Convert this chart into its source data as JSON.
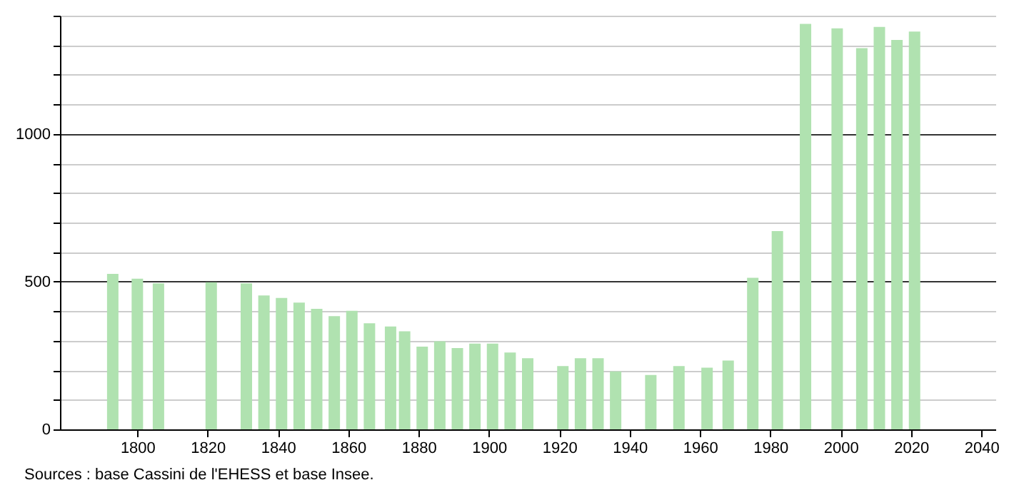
{
  "chart_data": {
    "type": "bar",
    "annotations": [
      "Sources : base Cassini de l'EHESS et base Insee."
    ],
    "x": [
      1793,
      1800,
      1806,
      1821,
      1831,
      1836,
      1841,
      1846,
      1851,
      1856,
      1861,
      1866,
      1872,
      1876,
      1881,
      1886,
      1891,
      1896,
      1901,
      1906,
      1911,
      1921,
      1926,
      1931,
      1936,
      1946,
      1954,
      1962,
      1968,
      1975,
      1982,
      1990,
      1999,
      2006,
      2011,
      2016,
      2021
    ],
    "values": [
      526,
      510,
      494,
      498,
      494,
      453,
      445,
      429,
      408,
      383,
      401,
      359,
      348,
      332,
      280,
      298,
      275,
      290,
      290,
      260,
      241,
      214,
      241,
      241,
      196,
      184,
      214,
      209,
      233,
      513,
      671,
      1372,
      1357,
      1290,
      1362,
      1318,
      1346
    ],
    "color": "#b0e2b0",
    "xlim": [
      1778,
      2044
    ],
    "xticks": [
      1800,
      1820,
      1840,
      1860,
      1880,
      1900,
      1920,
      1940,
      1960,
      1980,
      2000,
      2020,
      2040
    ],
    "ylim": [
      0,
      1400
    ],
    "yticks": [
      0,
      {
        "value": 100,
        "label": null
      },
      {
        "value": 200,
        "label": null
      },
      {
        "value": 300,
        "label": null
      },
      {
        "value": 400,
        "label": null
      },
      500,
      {
        "value": 600,
        "label": null
      },
      {
        "value": 700,
        "label": null
      },
      {
        "value": 800,
        "label": null
      },
      {
        "value": 900,
        "label": null
      },
      1000,
      {
        "value": 1100,
        "label": null
      },
      {
        "value": 1200,
        "label": null
      },
      {
        "value": 1300,
        "label": null
      },
      {
        "value": 1400,
        "label": null
      }
    ],
    "grid": "y"
  }
}
